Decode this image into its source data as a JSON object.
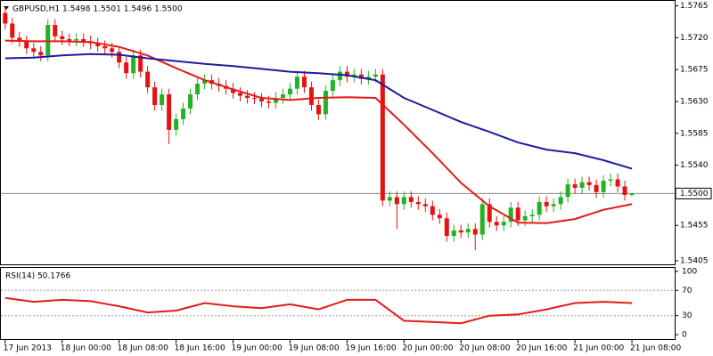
{
  "chart_data": [
    {
      "type": "candlestick",
      "title": "GBPUSD,H1  1.5498 1.5501 1.5496 1.5500",
      "open": [
        1.5755,
        1.574,
        1.572,
        1.5715,
        1.5705,
        1.57,
        1.5695,
        1.5738,
        1.5722,
        1.5718,
        1.5716,
        1.5718,
        1.5715,
        1.5712,
        1.5708,
        1.5705,
        1.57,
        1.5685,
        1.567,
        1.5695,
        1.5672,
        1.565,
        1.5625,
        1.564,
        1.559,
        1.5605,
        1.562,
        1.564,
        1.5655,
        1.566,
        1.5655,
        1.5652,
        1.5648,
        1.5642,
        1.5638,
        1.5635,
        1.5634,
        1.563,
        1.5628,
        1.5635,
        1.564,
        1.5648,
        1.5665,
        1.565,
        1.5625,
        1.5612,
        1.5645,
        1.566,
        1.5672,
        1.5665,
        1.5668,
        1.5662,
        1.5665,
        1.5668,
        1.549,
        1.5495,
        1.5485,
        1.5495,
        1.5488,
        1.5485,
        1.5482,
        1.547,
        1.5465,
        1.544,
        1.5448,
        1.5445,
        1.545,
        1.5442,
        1.5485,
        1.546,
        1.5455,
        1.546,
        1.548,
        1.5462,
        1.5468,
        1.547,
        1.5488,
        1.5482,
        1.5485,
        1.5495,
        1.5513,
        1.5508,
        1.5516,
        1.5512,
        1.5502,
        1.5518,
        1.552,
        1.551,
        1.5498
      ],
      "high": [
        1.5763,
        1.5748,
        1.5728,
        1.5723,
        1.5713,
        1.5708,
        1.5746,
        1.5746,
        1.573,
        1.5726,
        1.5726,
        1.5726,
        1.5723,
        1.572,
        1.5716,
        1.5713,
        1.5708,
        1.5693,
        1.5703,
        1.5703,
        1.568,
        1.5658,
        1.5648,
        1.5648,
        1.5613,
        1.5628,
        1.5648,
        1.5663,
        1.5668,
        1.5668,
        1.5663,
        1.566,
        1.5656,
        1.565,
        1.5646,
        1.5643,
        1.5642,
        1.5638,
        1.5643,
        1.5648,
        1.5656,
        1.5673,
        1.5673,
        1.5658,
        1.5633,
        1.5653,
        1.5668,
        1.568,
        1.568,
        1.5676,
        1.5676,
        1.5673,
        1.5676,
        1.5676,
        1.5503,
        1.5503,
        1.5503,
        1.5503,
        1.5496,
        1.5493,
        1.549,
        1.5478,
        1.5473,
        1.5456,
        1.5456,
        1.5458,
        1.5458,
        1.5493,
        1.5493,
        1.5468,
        1.5468,
        1.5488,
        1.5488,
        1.5476,
        1.5478,
        1.5496,
        1.5496,
        1.5493,
        1.5503,
        1.5521,
        1.5521,
        1.5524,
        1.5524,
        1.552,
        1.5526,
        1.5528,
        1.5528,
        1.5518,
        1.5501
      ],
      "low": [
        1.5732,
        1.5712,
        1.5707,
        1.5697,
        1.5692,
        1.5687,
        1.5687,
        1.5714,
        1.571,
        1.5708,
        1.5708,
        1.5707,
        1.5704,
        1.57,
        1.5697,
        1.5692,
        1.5677,
        1.5662,
        1.5662,
        1.5664,
        1.5642,
        1.5617,
        1.5617,
        1.557,
        1.5582,
        1.5597,
        1.5612,
        1.5632,
        1.5647,
        1.5647,
        1.5644,
        1.564,
        1.5634,
        1.563,
        1.5627,
        1.5626,
        1.5622,
        1.562,
        1.562,
        1.5627,
        1.5632,
        1.564,
        1.5642,
        1.5617,
        1.5604,
        1.5604,
        1.5637,
        1.5652,
        1.5657,
        1.5657,
        1.5654,
        1.5654,
        1.5657,
        1.5482,
        1.5482,
        1.545,
        1.5477,
        1.548,
        1.5477,
        1.5474,
        1.5462,
        1.5457,
        1.5432,
        1.5432,
        1.5437,
        1.5437,
        1.542,
        1.5434,
        1.5452,
        1.5447,
        1.5447,
        1.5452,
        1.5454,
        1.5454,
        1.546,
        1.5462,
        1.5474,
        1.5474,
        1.5477,
        1.5487,
        1.55,
        1.55,
        1.5504,
        1.5494,
        1.5494,
        1.551,
        1.5502,
        1.549,
        1.5496
      ],
      "close": [
        1.574,
        1.572,
        1.5715,
        1.5705,
        1.57,
        1.5695,
        1.5738,
        1.5722,
        1.5718,
        1.5716,
        1.5718,
        1.5715,
        1.5712,
        1.5708,
        1.5705,
        1.57,
        1.5685,
        1.567,
        1.5695,
        1.5672,
        1.565,
        1.5625,
        1.564,
        1.559,
        1.5605,
        1.562,
        1.564,
        1.5655,
        1.566,
        1.5655,
        1.5652,
        1.5648,
        1.5642,
        1.5638,
        1.5635,
        1.5634,
        1.563,
        1.5628,
        1.5635,
        1.564,
        1.5648,
        1.5665,
        1.565,
        1.5625,
        1.5612,
        1.5645,
        1.566,
        1.5672,
        1.5665,
        1.5668,
        1.5662,
        1.5665,
        1.5668,
        1.549,
        1.5495,
        1.5485,
        1.5495,
        1.5488,
        1.5485,
        1.5482,
        1.547,
        1.5465,
        1.544,
        1.5448,
        1.5445,
        1.545,
        1.5442,
        1.5485,
        1.546,
        1.5455,
        1.546,
        1.548,
        1.5462,
        1.5468,
        1.547,
        1.5488,
        1.5482,
        1.5485,
        1.5495,
        1.5513,
        1.5508,
        1.5516,
        1.5512,
        1.5502,
        1.5518,
        1.552,
        1.551,
        1.5498,
        1.55
      ],
      "up_color": "#22b222",
      "down_color": "#e81010",
      "series": [
        {
          "color": "#e41a1a",
          "x": [
            0,
            4,
            8,
            12,
            16,
            20,
            24,
            28,
            32,
            36,
            40,
            44,
            48,
            52,
            56,
            60,
            64,
            68,
            72,
            76,
            80,
            84,
            88
          ],
          "values": [
            1.5716,
            1.5715,
            1.5715,
            1.5714,
            1.5707,
            1.5695,
            1.5677,
            1.566,
            1.5647,
            1.5635,
            1.5632,
            1.5635,
            1.5636,
            1.5635,
            1.5597,
            1.5557,
            1.5515,
            1.5482,
            1.5459,
            1.5458,
            1.5464,
            1.5477,
            1.5485
          ]
        },
        {
          "color": "#1c1c9c",
          "x": [
            0,
            4,
            8,
            12,
            16,
            20,
            24,
            28,
            32,
            36,
            40,
            44,
            48,
            52,
            56,
            60,
            64,
            68,
            72,
            76,
            80,
            84,
            88
          ],
          "values": [
            1.5691,
            1.5692,
            1.5695,
            1.5697,
            1.5696,
            1.5691,
            1.5687,
            1.5683,
            1.568,
            1.5676,
            1.5672,
            1.567,
            1.5667,
            1.566,
            1.5635,
            1.5618,
            1.5601,
            1.5587,
            1.5572,
            1.5562,
            1.5557,
            1.5547,
            1.5535
          ]
        }
      ],
      "ylim": [
        1.54,
        1.5772
      ],
      "yticks": [
        {
          "value": 1.5765,
          "label": "1.5765"
        },
        {
          "value": 1.572,
          "label": "1.5720"
        },
        {
          "value": 1.5675,
          "label": "1.5675"
        },
        {
          "value": 1.563,
          "label": "1.5630"
        },
        {
          "value": 1.5585,
          "label": "1.5585"
        },
        {
          "value": 1.554,
          "label": "1.5540"
        },
        {
          "value": 1.5455,
          "label": "1.5455"
        },
        {
          "value": 1.5405,
          "label": "1.5405"
        }
      ],
      "current_price": {
        "value": 1.55,
        "label": "1.5500"
      }
    },
    {
      "type": "line",
      "title": "RSI(14) 50.1766",
      "x": [
        0,
        4,
        8,
        12,
        16,
        20,
        24,
        28,
        32,
        36,
        40,
        44,
        48,
        52,
        56,
        60,
        64,
        68,
        72,
        76,
        80,
        84,
        88
      ],
      "values": [
        58,
        52,
        55,
        53,
        45,
        35,
        38,
        50,
        45,
        42,
        48,
        40,
        55,
        55,
        22,
        20,
        18,
        30,
        32,
        40,
        50,
        52,
        50
      ],
      "color": "#e41a1a",
      "ylim": [
        0,
        100
      ],
      "yticks": [
        100,
        70,
        30,
        0
      ],
      "levels": [
        70,
        30
      ],
      "xlim": [
        -0.6,
        94
      ],
      "xticks": [
        {
          "value": 0,
          "label": "17 Jun 2013"
        },
        {
          "value": 8,
          "label": "18 Jun 00:00"
        },
        {
          "value": 16,
          "label": "18 Jun 08:00"
        },
        {
          "value": 24,
          "label": "18 Jun 16:00"
        },
        {
          "value": 32,
          "label": "19 Jun 00:00"
        },
        {
          "value": 40,
          "label": "19 Jun 08:00"
        },
        {
          "value": 48,
          "label": "19 Jun 16:00"
        },
        {
          "value": 56,
          "label": "20 Jun 00:00"
        },
        {
          "value": 64,
          "label": "20 Jun 08:00"
        },
        {
          "value": 72,
          "label": "20 Jun 16:00"
        },
        {
          "value": 80,
          "label": "21 Jun 00:00"
        },
        {
          "value": 88,
          "label": "21 Jun 08:00"
        }
      ]
    }
  ]
}
